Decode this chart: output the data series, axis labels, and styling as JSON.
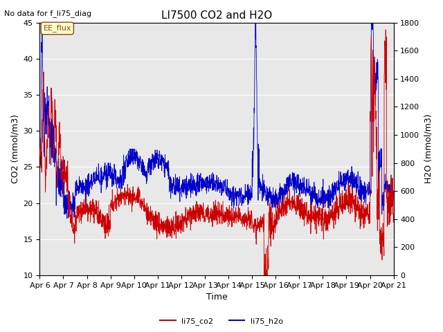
{
  "title": "LI7500 CO2 and H2O",
  "subtitle": "No data for f_li75_diag",
  "xlabel": "Time",
  "ylabel_left": "CO2 (mmol/m3)",
  "ylabel_right": "H2O (mmol/m3)",
  "ylim_left": [
    10,
    45
  ],
  "ylim_right": [
    0,
    1800
  ],
  "yticks_left": [
    10,
    15,
    20,
    25,
    30,
    35,
    40,
    45
  ],
  "yticks_right": [
    0,
    200,
    400,
    600,
    800,
    1000,
    1200,
    1400,
    1600,
    1800
  ],
  "xticklabels": [
    "Apr 6",
    "Apr 7",
    "Apr 8",
    "Apr 9",
    "Apr 10",
    "Apr 11",
    "Apr 12",
    "Apr 13",
    "Apr 14",
    "Apr 15",
    "Apr 16",
    "Apr 17",
    "Apr 18",
    "Apr 19",
    "Apr 20",
    "Apr 21"
  ],
  "legend_box_label": "EE_flux",
  "co2_color": "#cc0000",
  "h2o_color": "#0000cc",
  "background_color": "#ffffff",
  "plot_bg_color": "#e8e8e8",
  "grid_color": "#ffffff",
  "figsize": [
    6.4,
    4.8
  ],
  "dpi": 100
}
